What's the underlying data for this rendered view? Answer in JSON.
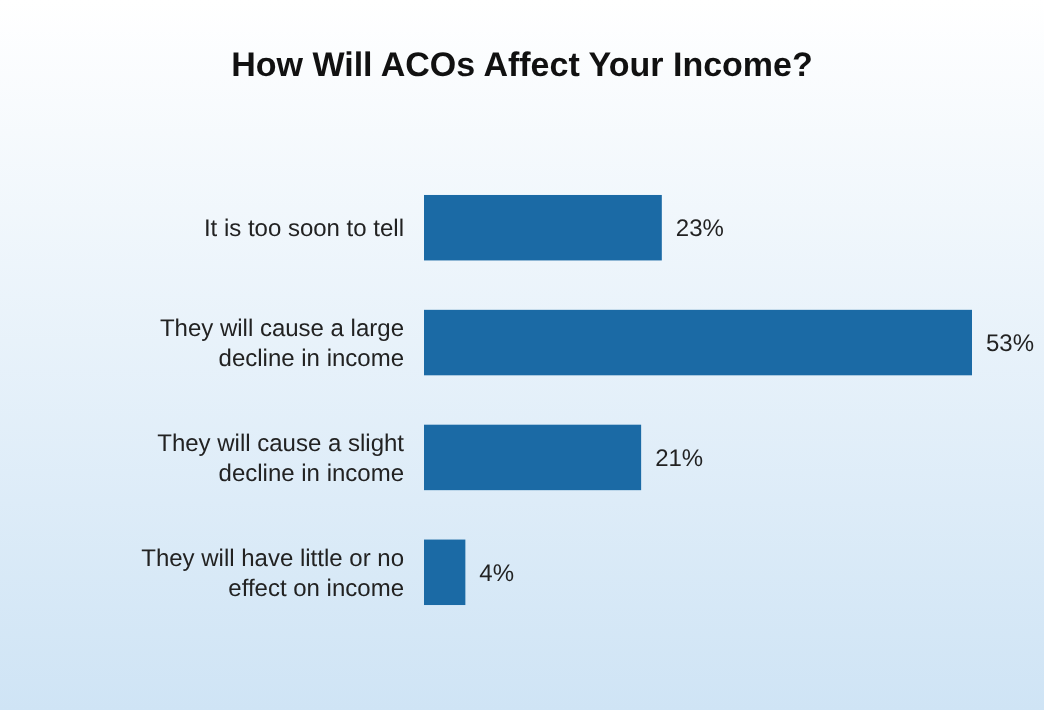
{
  "chart_data": {
    "type": "bar",
    "orientation": "horizontal",
    "title": "How Will ACOs Affect Your Income?",
    "categories": [
      "It is too soon to tell",
      "They will cause a large decline in income",
      "They will cause a slight decline in income",
      "They will have little or no effect on income"
    ],
    "values": [
      23,
      53,
      21,
      4
    ],
    "value_labels": [
      "23%",
      "53%",
      "21%",
      "4%"
    ],
    "color": "#1b6aa5"
  }
}
